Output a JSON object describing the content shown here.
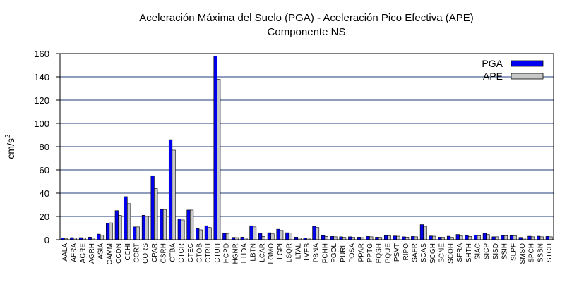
{
  "chart_data": {
    "type": "bar",
    "title": "Aceleración Máxima del Suelo (PGA) -  Aceleración Pico Efectiva (APE)",
    "subtitle": "Componente NS",
    "xlabel": "",
    "ylabel": "cm/s",
    "ylabel_superscript": "2",
    "ylim": [
      0,
      160
    ],
    "yticks": [
      0,
      20,
      40,
      60,
      80,
      100,
      120,
      140,
      160
    ],
    "grid": true,
    "legend_position": "top-right",
    "categories": [
      "AALA",
      "AFRA",
      "AGRE",
      "AGRH",
      "ASIA",
      "CAMM",
      "CCDN",
      "CCHI",
      "CCRT",
      "CORS",
      "CPAR",
      "CSRH",
      "CTBA",
      "CTCR",
      "CTEC",
      "CTOB",
      "CTRH",
      "CTUH",
      "HCPD",
      "HGNR",
      "HHDA",
      "LBTN",
      "LCAR",
      "LGMO",
      "LGPI",
      "LSQR",
      "LTAL",
      "LVES",
      "PBNA",
      "PCHH",
      "PGOL",
      "PURL",
      "POSA",
      "PPAR",
      "PPTG",
      "PQSH",
      "PQUE",
      "PSVT",
      "RIPO",
      "SAFR",
      "SCAS",
      "SCGH",
      "SCNE",
      "SCOH",
      "SFRA",
      "SHTH",
      "SIAC",
      "SICP",
      "SISD",
      "SSIH",
      "SLPF",
      "SMSO",
      "SPCH",
      "SSBN",
      "STCH"
    ],
    "series": [
      {
        "name": "PGA",
        "color": "#0000ee",
        "values": [
          1.5,
          1.8,
          1.8,
          2.2,
          4.8,
          14.0,
          25.0,
          37.0,
          11.0,
          21.0,
          55.0,
          26.0,
          86.0,
          18.0,
          25.5,
          9.5,
          12.0,
          158.0,
          5.5,
          2.0,
          2.2,
          12.0,
          5.5,
          6.0,
          9.0,
          6.0,
          2.2,
          1.5,
          11.5,
          3.5,
          2.8,
          2.5,
          2.5,
          2.2,
          2.8,
          2.2,
          3.5,
          3.2,
          2.5,
          2.8,
          13.0,
          3.2,
          2.2,
          3.0,
          4.5,
          3.5,
          4.0,
          5.5,
          2.5,
          3.5,
          3.5,
          2.0,
          3.0,
          3.0,
          2.8
        ]
      },
      {
        "name": "APE",
        "color": "#c8c8c8",
        "values": [
          1.2,
          1.5,
          1.5,
          1.5,
          3.8,
          14.5,
          21.0,
          31.0,
          11.0,
          20.0,
          44.0,
          26.0,
          77.0,
          17.0,
          25.5,
          8.5,
          10.5,
          138.0,
          5.0,
          1.8,
          1.5,
          11.0,
          2.8,
          5.0,
          8.0,
          5.8,
          1.5,
          1.5,
          10.5,
          2.8,
          2.5,
          2.0,
          2.0,
          1.8,
          2.5,
          2.0,
          3.5,
          3.0,
          2.2,
          2.5,
          11.5,
          3.0,
          2.0,
          2.0,
          3.5,
          2.8,
          3.5,
          4.5,
          2.5,
          3.5,
          3.5,
          1.5,
          2.5,
          2.5,
          2.5
        ]
      }
    ]
  }
}
